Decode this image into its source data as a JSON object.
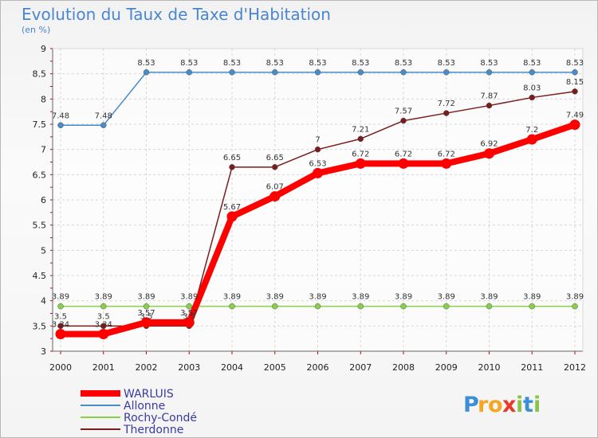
{
  "chart_data": {
    "type": "line",
    "title": "Evolution du Taux de Taxe d'Habitation",
    "subtitle": "(en %)",
    "x": [
      "2000",
      "2001",
      "2002",
      "2003",
      "2004",
      "2005",
      "2006",
      "2007",
      "2008",
      "2009",
      "2010",
      "2011",
      "2012"
    ],
    "ylim": [
      3,
      9
    ],
    "yticks": [
      "3",
      "3.5",
      "4",
      "4.5",
      "5",
      "5.5",
      "6",
      "6.5",
      "7",
      "7.5",
      "8",
      "8.5",
      "9"
    ],
    "grid": true,
    "legend_position": "bottom-left",
    "series": [
      {
        "name": "WARLUIS",
        "color": "#ff0000",
        "values": [
          3.34,
          3.34,
          3.57,
          3.57,
          5.67,
          6.07,
          6.53,
          6.72,
          6.72,
          6.72,
          6.92,
          7.2,
          7.49
        ],
        "labels": [
          "3.34",
          "3.34",
          "3.57",
          "3.57",
          "5.67",
          "6.07",
          "6.53",
          "6.72",
          "6.72",
          "6.72",
          "6.92",
          "7.2",
          "7.49"
        ]
      },
      {
        "name": "Allonne",
        "color": "#4a8cc8",
        "values": [
          7.48,
          7.48,
          8.53,
          8.53,
          8.53,
          8.53,
          8.53,
          8.53,
          8.53,
          8.53,
          8.53,
          8.53,
          8.53
        ],
        "labels": [
          "7.48",
          "7.48",
          "8.53",
          "8.53",
          "8.53",
          "8.53",
          "8.53",
          "8.53",
          "8.53",
          "8.53",
          "8.53",
          "8.53",
          "8.53"
        ]
      },
      {
        "name": "Rochy-Condé",
        "color": "#88d048",
        "values": [
          3.89,
          3.89,
          3.89,
          3.89,
          3.89,
          3.89,
          3.89,
          3.89,
          3.89,
          3.89,
          3.89,
          3.89,
          3.89
        ],
        "labels": [
          "3.89",
          "3.89",
          "3.89",
          "3.89",
          "3.89",
          "3.89",
          "3.89",
          "3.89",
          "3.89",
          "3.89",
          "3.89",
          "3.89",
          "3.89"
        ]
      },
      {
        "name": "Therdonne",
        "color": "#7a1c1c",
        "values": [
          3.5,
          3.5,
          3.5,
          3.5,
          6.65,
          6.65,
          7,
          7.21,
          7.57,
          7.72,
          7.87,
          8.03,
          8.15
        ],
        "labels": [
          "3.5",
          "3.5",
          "3.5",
          "3.5",
          "6.65",
          "6.65",
          "7",
          "7.21",
          "7.57",
          "7.72",
          "7.87",
          "8.03",
          "8.15"
        ]
      }
    ]
  },
  "brand": {
    "logo_text": "Proxiti"
  }
}
